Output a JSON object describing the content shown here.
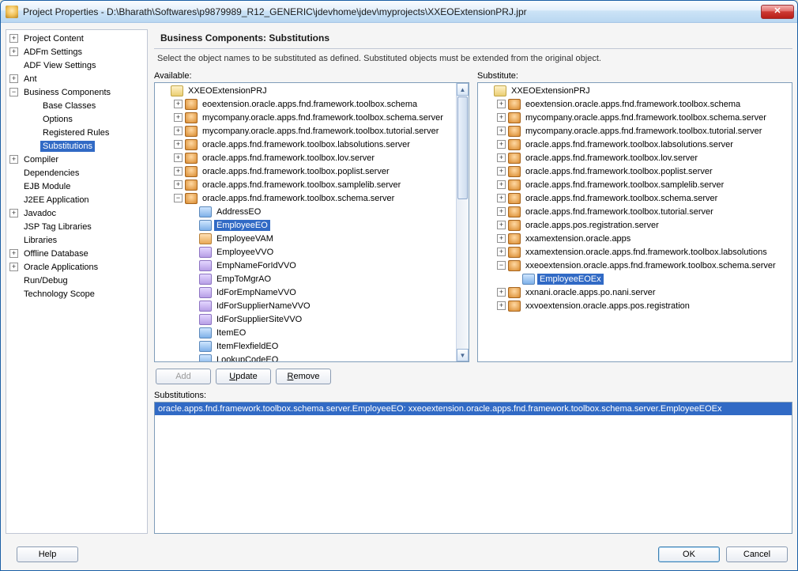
{
  "window": {
    "title": "Project Properties - D:\\Bharath\\Softwares\\p9879989_R12_GENERIC\\jdevhome\\jdev\\myprojects\\XXEOExtensionPRJ.jpr",
    "close_glyph": "✕"
  },
  "left_tree": {
    "items": [
      {
        "label": "Project Content",
        "depth": 1,
        "toggle": "+"
      },
      {
        "label": "ADFm Settings",
        "depth": 1,
        "toggle": "+"
      },
      {
        "label": "ADF View Settings",
        "depth": 1,
        "toggle": ""
      },
      {
        "label": "Ant",
        "depth": 1,
        "toggle": "+"
      },
      {
        "label": "Business Components",
        "depth": 1,
        "toggle": "−"
      },
      {
        "label": "Base Classes",
        "depth": 2,
        "toggle": ""
      },
      {
        "label": "Options",
        "depth": 2,
        "toggle": ""
      },
      {
        "label": "Registered Rules",
        "depth": 2,
        "toggle": ""
      },
      {
        "label": "Substitutions",
        "depth": 2,
        "toggle": "",
        "selected": true
      },
      {
        "label": "Compiler",
        "depth": 1,
        "toggle": "+"
      },
      {
        "label": "Dependencies",
        "depth": 1,
        "toggle": ""
      },
      {
        "label": "EJB Module",
        "depth": 1,
        "toggle": ""
      },
      {
        "label": "J2EE Application",
        "depth": 1,
        "toggle": ""
      },
      {
        "label": "Javadoc",
        "depth": 1,
        "toggle": "+"
      },
      {
        "label": "JSP Tag Libraries",
        "depth": 1,
        "toggle": ""
      },
      {
        "label": "Libraries",
        "depth": 1,
        "toggle": ""
      },
      {
        "label": "Offline Database",
        "depth": 1,
        "toggle": "+"
      },
      {
        "label": "Oracle Applications",
        "depth": 1,
        "toggle": "+"
      },
      {
        "label": "Run/Debug",
        "depth": 1,
        "toggle": ""
      },
      {
        "label": "Technology Scope",
        "depth": 1,
        "toggle": ""
      }
    ]
  },
  "main": {
    "heading": "Business Components: Substitutions",
    "description": "Select the object names to be substituted as defined. Substituted objects must be extended from the original object.",
    "available_label": "Available:",
    "substitute_label": "Substitute:",
    "buttons": {
      "add": "Add",
      "update": "Update",
      "remove": "Remove"
    },
    "substitutions_label": "Substitutions:",
    "substitutions": [
      "oracle.apps.fnd.framework.toolbox.schema.server.EmployeeEO: xxeoextension.oracle.apps.fnd.framework.toolbox.schema.server.EmployeeEOEx"
    ],
    "available_tree": [
      {
        "depth": 0,
        "toggle": "",
        "icon": "prj",
        "label": "XXEOExtensionPRJ"
      },
      {
        "depth": 1,
        "toggle": "+",
        "icon": "pkg",
        "label": "eoextension.oracle.apps.fnd.framework.toolbox.schema"
      },
      {
        "depth": 1,
        "toggle": "+",
        "icon": "pkg",
        "label": "mycompany.oracle.apps.fnd.framework.toolbox.schema.server"
      },
      {
        "depth": 1,
        "toggle": "+",
        "icon": "pkg",
        "label": "mycompany.oracle.apps.fnd.framework.toolbox.tutorial.server"
      },
      {
        "depth": 1,
        "toggle": "+",
        "icon": "pkg",
        "label": "oracle.apps.fnd.framework.toolbox.labsolutions.server"
      },
      {
        "depth": 1,
        "toggle": "+",
        "icon": "pkg",
        "label": "oracle.apps.fnd.framework.toolbox.lov.server"
      },
      {
        "depth": 1,
        "toggle": "+",
        "icon": "pkg",
        "label": "oracle.apps.fnd.framework.toolbox.poplist.server"
      },
      {
        "depth": 1,
        "toggle": "+",
        "icon": "pkg",
        "label": "oracle.apps.fnd.framework.toolbox.samplelib.server"
      },
      {
        "depth": 1,
        "toggle": "−",
        "icon": "pkg",
        "label": "oracle.apps.fnd.framework.toolbox.schema.server"
      },
      {
        "depth": 2,
        "toggle": "",
        "icon": "eo",
        "label": "AddressEO"
      },
      {
        "depth": 2,
        "toggle": "",
        "icon": "eo",
        "label": "EmployeeEO",
        "selected": true
      },
      {
        "depth": 2,
        "toggle": "",
        "icon": "am",
        "label": "EmployeeVAM"
      },
      {
        "depth": 2,
        "toggle": "",
        "icon": "vo",
        "label": "EmployeeVVO"
      },
      {
        "depth": 2,
        "toggle": "",
        "icon": "vo",
        "label": "EmpNameForIdVVO"
      },
      {
        "depth": 2,
        "toggle": "",
        "icon": "vo",
        "label": "EmpToMgrAO"
      },
      {
        "depth": 2,
        "toggle": "",
        "icon": "vo",
        "label": "IdForEmpNameVVO"
      },
      {
        "depth": 2,
        "toggle": "",
        "icon": "vo",
        "label": "IdForSupplierNameVVO"
      },
      {
        "depth": 2,
        "toggle": "",
        "icon": "vo",
        "label": "IdForSupplierSiteVVO"
      },
      {
        "depth": 2,
        "toggle": "",
        "icon": "eo",
        "label": "ItemEO"
      },
      {
        "depth": 2,
        "toggle": "",
        "icon": "eo",
        "label": "ItemFlexfieldEO"
      },
      {
        "depth": 2,
        "toggle": "",
        "icon": "eo",
        "label": "LookupCodeEO"
      }
    ],
    "substitute_tree": [
      {
        "depth": 0,
        "toggle": "",
        "icon": "prj",
        "label": "XXEOExtensionPRJ"
      },
      {
        "depth": 1,
        "toggle": "+",
        "icon": "pkg",
        "label": "eoextension.oracle.apps.fnd.framework.toolbox.schema"
      },
      {
        "depth": 1,
        "toggle": "+",
        "icon": "pkg",
        "label": "mycompany.oracle.apps.fnd.framework.toolbox.schema.server"
      },
      {
        "depth": 1,
        "toggle": "+",
        "icon": "pkg",
        "label": "mycompany.oracle.apps.fnd.framework.toolbox.tutorial.server"
      },
      {
        "depth": 1,
        "toggle": "+",
        "icon": "pkg",
        "label": "oracle.apps.fnd.framework.toolbox.labsolutions.server"
      },
      {
        "depth": 1,
        "toggle": "+",
        "icon": "pkg",
        "label": "oracle.apps.fnd.framework.toolbox.lov.server"
      },
      {
        "depth": 1,
        "toggle": "+",
        "icon": "pkg",
        "label": "oracle.apps.fnd.framework.toolbox.poplist.server"
      },
      {
        "depth": 1,
        "toggle": "+",
        "icon": "pkg",
        "label": "oracle.apps.fnd.framework.toolbox.samplelib.server"
      },
      {
        "depth": 1,
        "toggle": "+",
        "icon": "pkg",
        "label": "oracle.apps.fnd.framework.toolbox.schema.server"
      },
      {
        "depth": 1,
        "toggle": "+",
        "icon": "pkg",
        "label": "oracle.apps.fnd.framework.toolbox.tutorial.server"
      },
      {
        "depth": 1,
        "toggle": "+",
        "icon": "pkg",
        "label": "oracle.apps.pos.registration.server"
      },
      {
        "depth": 1,
        "toggle": "+",
        "icon": "pkg",
        "label": "xxamextension.oracle.apps"
      },
      {
        "depth": 1,
        "toggle": "+",
        "icon": "pkg",
        "label": "xxamextension.oracle.apps.fnd.framework.toolbox.labsolutions"
      },
      {
        "depth": 1,
        "toggle": "−",
        "icon": "pkg",
        "label": "xxeoextension.oracle.apps.fnd.framework.toolbox.schema.server"
      },
      {
        "depth": 2,
        "toggle": "",
        "icon": "eo",
        "label": "EmployeeEOEx",
        "selected": true
      },
      {
        "depth": 1,
        "toggle": "+",
        "icon": "pkg",
        "label": "xxnani.oracle.apps.po.nani.server"
      },
      {
        "depth": 1,
        "toggle": "+",
        "icon": "pkg",
        "label": "xxvoextension.oracle.apps.pos.registration"
      }
    ]
  },
  "footer": {
    "help": "Help",
    "ok": "OK",
    "cancel": "Cancel"
  },
  "colors": {
    "selection_bg": "#316ac5",
    "border": "#7f9db9"
  }
}
